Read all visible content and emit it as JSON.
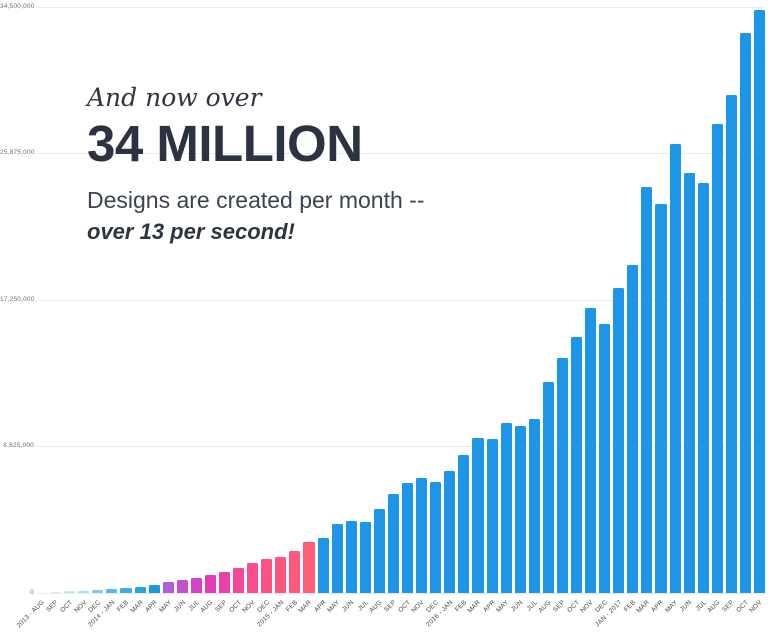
{
  "title_block": {
    "line1": "And now over",
    "line2": "34 MILLION",
    "line3": "Designs are created per month --",
    "line4": "over 13 per second!"
  },
  "colors": {
    "bar_blue": "#1e96e8",
    "grid": "#ebebeb",
    "y_label": "#6e6e6e",
    "x_label": "#4b4b4b",
    "headline": "#2d3340",
    "background": "#ffffff"
  },
  "chart_data": {
    "type": "bar",
    "title": "And now over 34 MILLION Designs are created per month -- over 13 per second!",
    "xlabel": "",
    "ylabel": "",
    "ylim": [
      0,
      34500000
    ],
    "grid": "horizontal",
    "legend": "none",
    "y_ticks": [
      {
        "value": 0,
        "label": "0"
      },
      {
        "value": 8625000,
        "label": "8,625,000"
      },
      {
        "value": 17250000,
        "label": "17,250,000"
      },
      {
        "value": 25875000,
        "label": "25,875,000"
      },
      {
        "value": 34500000,
        "label": "34,500,000"
      }
    ],
    "categories": [
      "2013 - AUG",
      "SEP",
      "OCT",
      "NOV",
      "DEC",
      "2014 - JAN",
      "FEB",
      "MAR",
      "APR",
      "MAY",
      "JUN",
      "JUL",
      "AUG",
      "SEP",
      "OCT",
      "NOV",
      "DEC",
      "2015 - JAN",
      "FEB",
      "MAR",
      "APR",
      "MAY",
      "JUN",
      "JUL",
      "AUG",
      "SEP",
      "OCT",
      "NOV",
      "DEC",
      "2016 - JAN",
      "FEB",
      "MAR",
      "APR",
      "MAY",
      "JUN",
      "JUL",
      "AUG",
      "SEP",
      "OCT",
      "NOV",
      "DEC",
      "JAN - 2017",
      "FEB",
      "MAR",
      "APR",
      "MAY",
      "JUN",
      "JUL",
      "AUG",
      "SEP",
      "OCT",
      "NOV"
    ],
    "values": [
      30000,
      60000,
      100000,
      130000,
      180000,
      240000,
      300000,
      360000,
      470000,
      650000,
      780000,
      900000,
      1060000,
      1250000,
      1470000,
      1790000,
      2000000,
      2120000,
      2470000,
      3000000,
      3210000,
      4080000,
      4250000,
      4200000,
      4950000,
      5830000,
      6480000,
      6770000,
      6540000,
      7180000,
      8120000,
      9120000,
      9070000,
      10000000,
      9830000,
      10240000,
      12420000,
      13830000,
      15070000,
      16780000,
      15830000,
      17980000,
      19330000,
      23920000,
      22910000,
      26440000,
      24730000,
      24150000,
      27630000,
      29330000,
      32960000,
      34330000
    ],
    "bar_colors": [
      "#d9f3f9",
      "#cdeff7",
      "#bfeaf4",
      "#a3e0f0",
      "#7ccdea",
      "#58bbe7",
      "#3daee4",
      "#29a4e2",
      "#1c9ae1",
      "#b25cda",
      "#c450d1",
      "#d244c6",
      "#e13cb8",
      "#ec3fa7",
      "#f34797",
      "#f84e8c",
      "#fa5285",
      "#fc5680",
      "#fd597c",
      "#fe5c79",
      "#1e96e8",
      "#1e96e8",
      "#1e96e8",
      "#1e96e8",
      "#1e96e8",
      "#1e96e8",
      "#1e96e8",
      "#1e96e8",
      "#1e96e8",
      "#1e96e8",
      "#1e96e8",
      "#1e96e8",
      "#1e96e8",
      "#1e96e8",
      "#1e96e8",
      "#1e96e8",
      "#1e96e8",
      "#1e96e8",
      "#1e96e8",
      "#1e96e8",
      "#1e96e8",
      "#1e96e8",
      "#1e96e8",
      "#1e96e8",
      "#1e96e8",
      "#1e96e8",
      "#1e96e8",
      "#1e96e8",
      "#1e96e8",
      "#1e96e8",
      "#1e96e8",
      "#1e96e8"
    ]
  }
}
